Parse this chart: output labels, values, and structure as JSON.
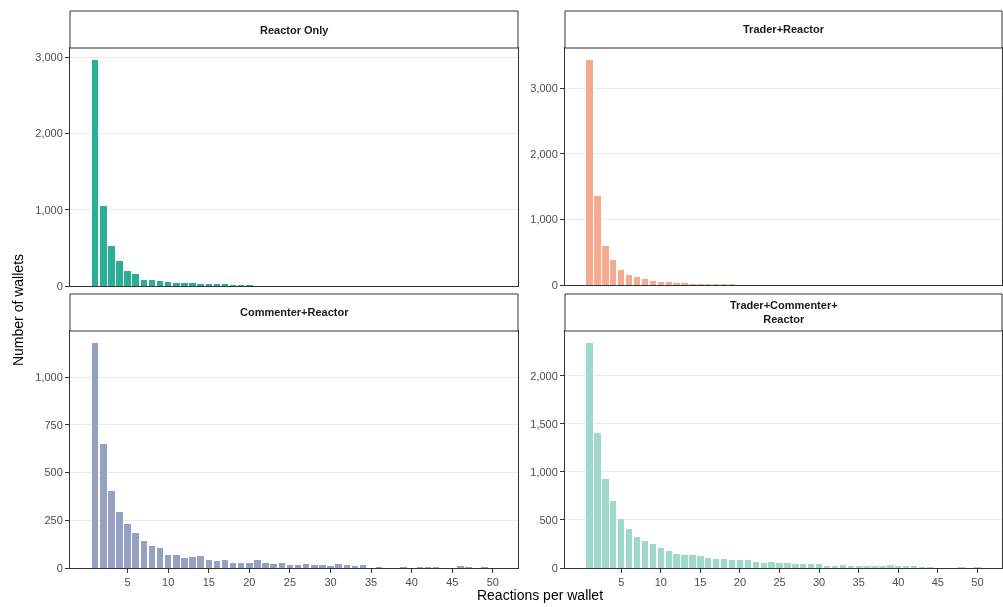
{
  "chart_data": [
    {
      "type": "bar",
      "title": "Reactor Only",
      "ylabel": "Number of wallets",
      "x": [
        1,
        2,
        3,
        4,
        5,
        6,
        7,
        8,
        9,
        10,
        11,
        12,
        13,
        14,
        15,
        16,
        17,
        18,
        19,
        20
      ],
      "values": [
        2960,
        1050,
        520,
        330,
        200,
        160,
        80,
        80,
        70,
        50,
        40,
        40,
        40,
        20,
        20,
        20,
        20,
        10,
        10,
        10
      ],
      "color": "#2aae95",
      "xlim": [
        -2.1,
        53.1
      ],
      "xticks": [
        5,
        10,
        15,
        20,
        25,
        30,
        35,
        40,
        45,
        50
      ],
      "ylim": [
        0,
        3120
      ],
      "yticks": [
        0,
        {
          "value": 1000,
          "label": "1,000"
        },
        {
          "value": 2000,
          "label": "2,000"
        },
        {
          "value": 3000,
          "label": "3,000"
        }
      ],
      "grid": "y",
      "tick_labels": "y"
    },
    {
      "type": "bar",
      "title": "Trader+Reactor",
      "x": [
        1,
        2,
        3,
        4,
        5,
        6,
        7,
        8,
        9,
        10,
        11,
        12,
        13,
        14,
        15,
        16,
        17,
        18,
        19
      ],
      "values": [
        3420,
        1350,
        590,
        380,
        230,
        150,
        120,
        90,
        60,
        50,
        40,
        30,
        30,
        20,
        10,
        10,
        10,
        10,
        10
      ],
      "color": "#f4aa8e",
      "xlim": [
        -2.1,
        53.1
      ],
      "xticks": [
        5,
        10,
        15,
        20,
        25,
        30,
        35,
        40,
        45,
        50
      ],
      "ylim": [
        0,
        3610
      ],
      "yticks": [
        0,
        {
          "value": 1000,
          "label": "1,000"
        },
        {
          "value": 2000,
          "label": "2,000"
        },
        {
          "value": 3000,
          "label": "3,000"
        }
      ],
      "grid": "y",
      "tick_labels": "y"
    },
    {
      "type": "bar",
      "title": "Commenter+Reactor",
      "xlabel": "Reactions per wallet",
      "x": [
        1,
        2,
        3,
        4,
        5,
        6,
        7,
        8,
        9,
        10,
        11,
        12,
        13,
        14,
        15,
        16,
        17,
        18,
        19,
        20,
        21,
        22,
        23,
        24,
        25,
        26,
        27,
        28,
        29,
        30,
        31,
        32,
        33,
        34,
        35,
        36,
        37,
        38,
        39,
        40,
        41,
        42,
        43,
        44,
        45,
        46,
        47,
        48,
        49,
        50
      ],
      "values": [
        1180,
        650,
        405,
        295,
        230,
        185,
        140,
        115,
        105,
        70,
        70,
        55,
        60,
        65,
        40,
        35,
        40,
        25,
        25,
        25,
        40,
        25,
        20,
        25,
        15,
        15,
        20,
        15,
        15,
        10,
        20,
        15,
        10,
        15,
        0,
        5,
        0,
        0,
        5,
        0,
        5,
        5,
        5,
        0,
        0,
        10,
        5,
        0,
        5,
        0
      ],
      "color": "#95a0c2",
      "xlim": [
        -2.1,
        53.1
      ],
      "xticks": [
        5,
        10,
        15,
        20,
        25,
        30,
        35,
        40,
        45,
        50
      ],
      "ylim": [
        0,
        1241
      ],
      "yticks": [
        0,
        250,
        500,
        750,
        {
          "value": 1000,
          "label": "1,000"
        }
      ],
      "grid": "y"
    },
    {
      "type": "bar",
      "title": "Trader+Commenter+Reactor",
      "x": [
        1,
        2,
        3,
        4,
        5,
        6,
        7,
        8,
        9,
        10,
        11,
        12,
        13,
        14,
        15,
        16,
        17,
        18,
        19,
        20,
        21,
        22,
        23,
        24,
        25,
        26,
        27,
        28,
        29,
        30,
        31,
        32,
        33,
        34,
        35,
        36,
        37,
        38,
        39,
        40,
        41,
        42,
        43,
        44,
        45,
        46,
        47,
        48,
        49,
        50
      ],
      "values": [
        2340,
        1400,
        930,
        700,
        510,
        410,
        320,
        280,
        250,
        210,
        180,
        150,
        140,
        140,
        130,
        100,
        90,
        90,
        80,
        80,
        80,
        60,
        50,
        60,
        50,
        50,
        40,
        40,
        40,
        40,
        20,
        20,
        30,
        20,
        20,
        20,
        20,
        20,
        30,
        20,
        20,
        20,
        10,
        10,
        0,
        0,
        0,
        10,
        0,
        10
      ],
      "color": "#a0d9c9",
      "xlim": [
        -2.1,
        53.1
      ],
      "xticks": [
        5,
        10,
        15,
        20,
        25,
        30,
        35,
        40,
        45,
        50
      ],
      "ylim": [
        0,
        2465
      ],
      "yticks": [
        0,
        500,
        {
          "value": 1000,
          "label": "1,000"
        },
        {
          "value": 1500,
          "label": "1,500"
        },
        {
          "value": 2000,
          "label": "2,000"
        }
      ],
      "grid": "y"
    }
  ]
}
